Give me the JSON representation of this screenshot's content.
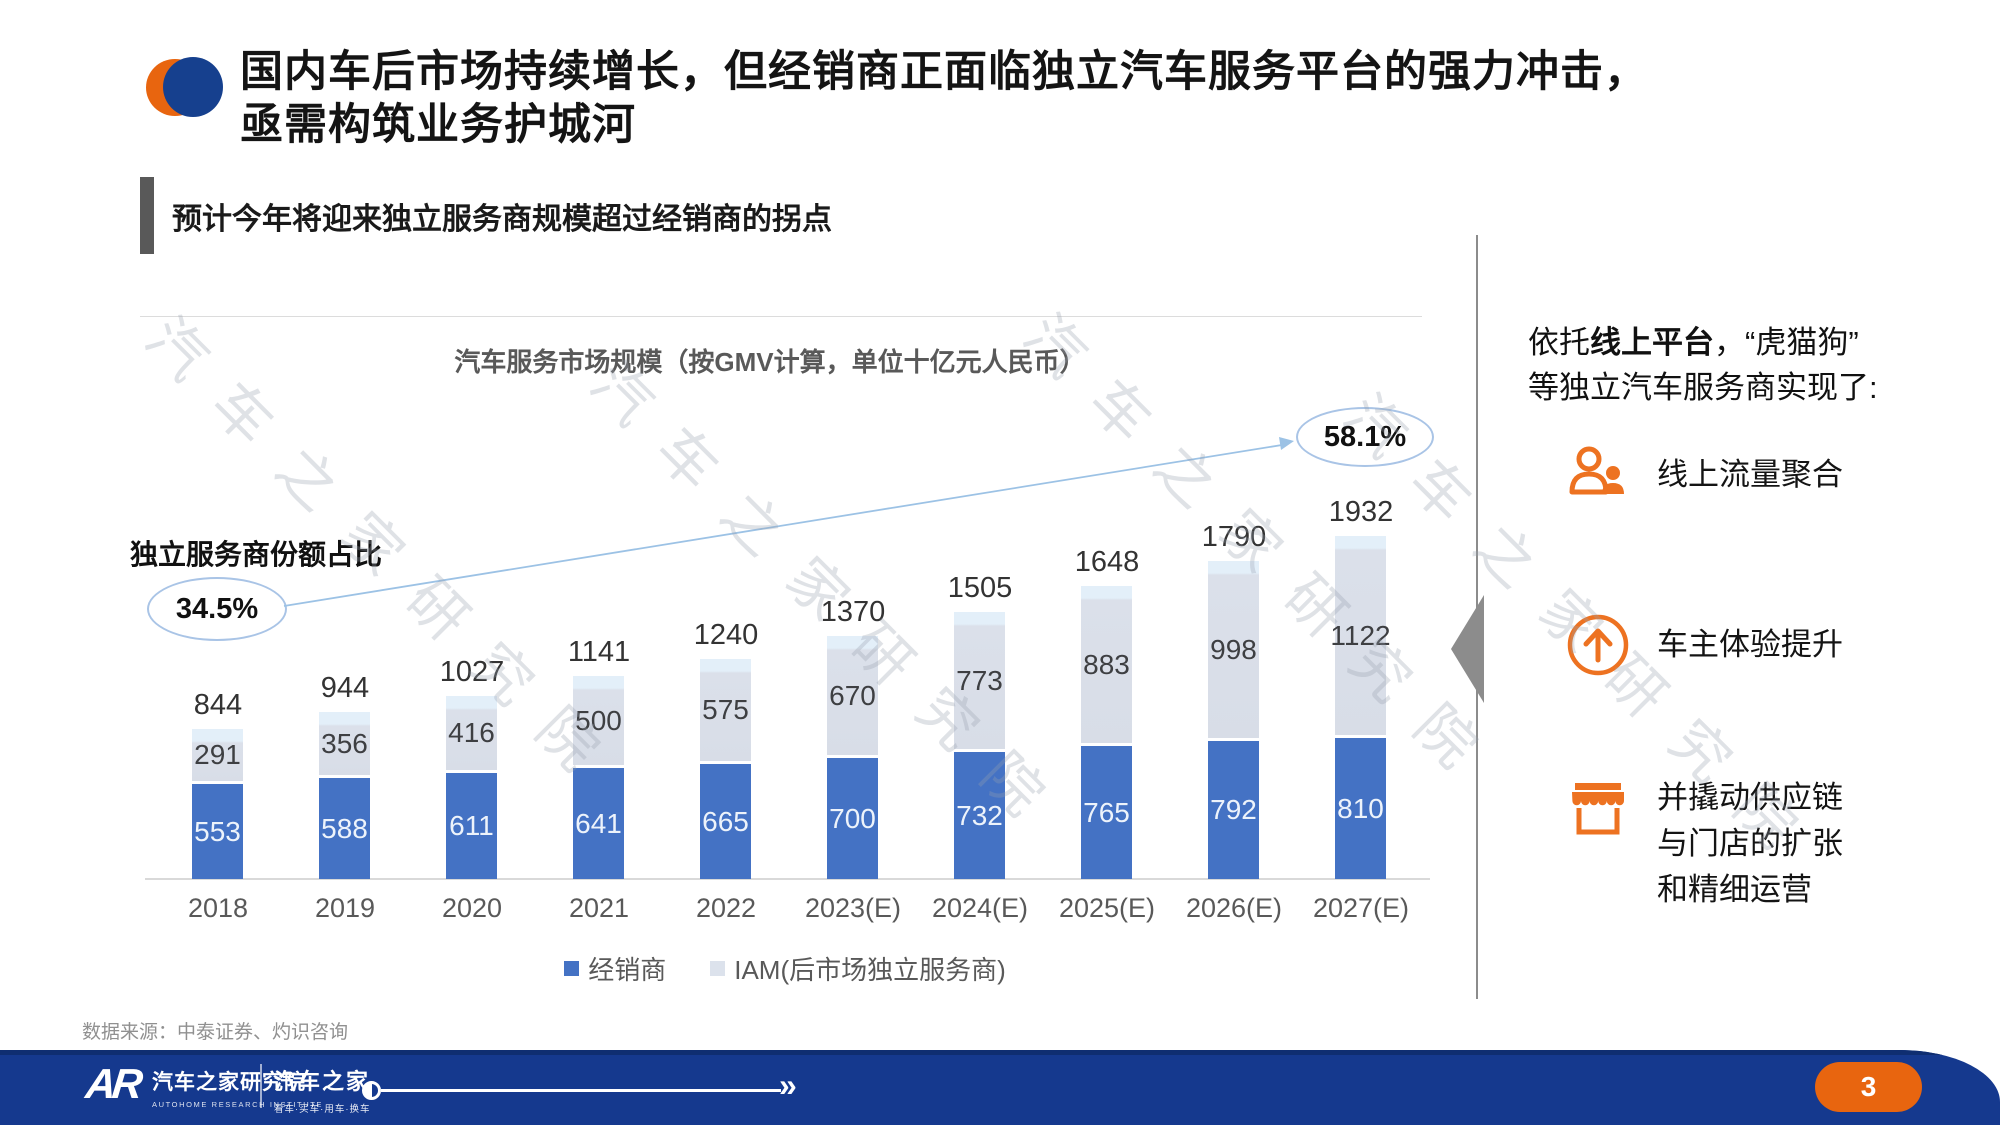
{
  "header": {
    "title_line1": "国内车后市场持续增长，但经销商正面临独立汽车服务平台的强力冲击，",
    "title_line2": "亟需构筑业务护城河"
  },
  "section": {
    "subtitle": "预计今年将迎来独立服务商规模超过经销商的拐点"
  },
  "chart_data": {
    "type": "bar",
    "stacked": true,
    "title": "汽车服务市场规模（按GMV计算，单位十亿元人民币）",
    "categories": [
      "2018",
      "2019",
      "2020",
      "2021",
      "2022",
      "2023(E)",
      "2024(E)",
      "2025(E)",
      "2026(E)",
      "2027(E)"
    ],
    "series": [
      {
        "name": "经销商",
        "color": "#4472C4",
        "values": [
          553,
          588,
          611,
          641,
          665,
          700,
          732,
          765,
          792,
          810
        ]
      },
      {
        "name": "IAM(后市场独立服务商)",
        "color": "#DCE2EC",
        "values": [
          291,
          356,
          416,
          500,
          575,
          670,
          773,
          883,
          998,
          1122
        ]
      }
    ],
    "totals": [
      844,
      944,
      1027,
      1141,
      1240,
      1370,
      1505,
      1648,
      1790,
      1932
    ],
    "annotations": {
      "share_label": "独立服务商份额占比",
      "start_pct": "34.5%",
      "end_pct": "58.1%"
    },
    "legend_position": "bottom",
    "ylim": [
      0,
      2000
    ],
    "grid": false
  },
  "right_panel": {
    "intro_prefix": "依托",
    "intro_bold": "线上平台",
    "intro_suffix": "，“虎猫狗”",
    "intro_line2": "等独立汽车服务商实现了:",
    "items": [
      {
        "icon": "users-icon",
        "label": "线上流量聚合"
      },
      {
        "icon": "arrow-up-circle-icon",
        "label": "车主体验提升"
      },
      {
        "icon": "storefront-icon",
        "label": "并撬动供应链与门店的扩张和精细运营"
      }
    ]
  },
  "footnote": "数据来源：中泰证券、灼识咨询",
  "footer": {
    "logo_text": "AR",
    "org_cn": "汽车之家研究院",
    "org_en": "AUTOHOME RESEARCH INSTITUTE",
    "brand_cn": "汽车之家",
    "brand_sub": "看车·买车·用车·换车",
    "progress_arrow": "»",
    "page": "3"
  },
  "watermark": "汽车之家研究院",
  "colors": {
    "accent_orange": "#E8650F",
    "icon_orange": "#ED7221",
    "brand_blue": "#16408E",
    "footer_blue": "#15398E",
    "bar_dealer": "#4472C4",
    "bar_iam": "#DCE2EC",
    "annotation_blue": "#9CC2E5"
  }
}
